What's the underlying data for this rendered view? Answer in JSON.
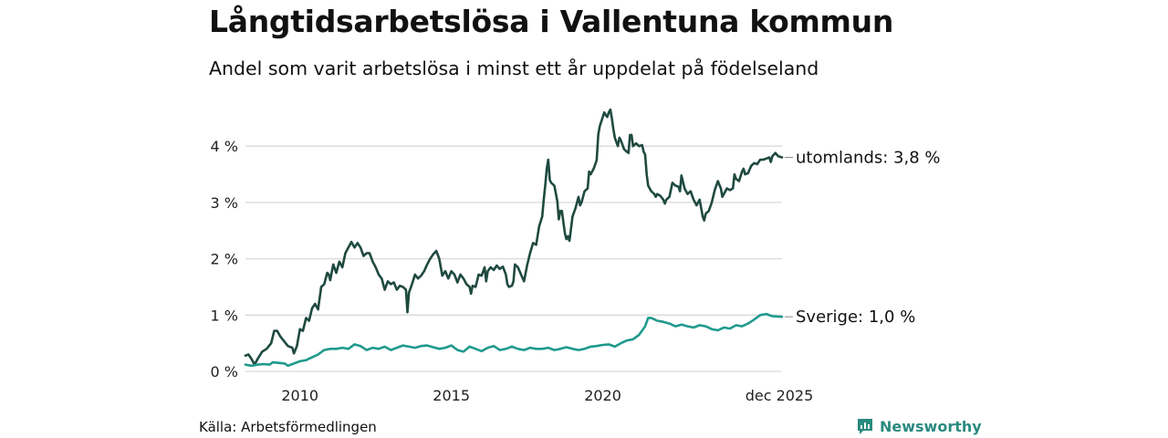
{
  "title": "Långtidsarbetslösa i Vallentuna kommun",
  "subtitle": "Andel som varit arbetslösa i minst ett år uppdelat på födelseland",
  "source": "Källa: Arbetsförmedlingen",
  "brand": "Newsworthy",
  "colors": {
    "utomlands": "#1f4a40",
    "sverige": "#1f9a8c",
    "grid": "#d9d9d9",
    "brand": "#2a8a80"
  },
  "chart_data": {
    "type": "line",
    "title": "Långtidsarbetslösa i Vallentuna kommun",
    "xlabel": "",
    "ylabel": "",
    "ylim": [
      0,
      4.8
    ],
    "xlim": [
      2008.2,
      2025.92
    ],
    "y_ticks": [
      0,
      1,
      2,
      3,
      4
    ],
    "y_tick_labels": [
      "0 %",
      "1 %",
      "2 %",
      "3 %",
      "4 %"
    ],
    "x_ticks": [
      2010,
      2015,
      2020,
      2025.92
    ],
    "x_tick_labels": [
      "2010",
      "2015",
      "2020",
      "dec 2025"
    ],
    "grid": true,
    "series": [
      {
        "name": "utomlands",
        "label": "utomlands: 3,8 %",
        "points": [
          [
            2008.2,
            0.28
          ],
          [
            2008.3,
            0.3
          ],
          [
            2008.4,
            0.22
          ],
          [
            2008.5,
            0.12
          ],
          [
            2008.6,
            0.22
          ],
          [
            2008.75,
            0.35
          ],
          [
            2008.9,
            0.4
          ],
          [
            2009.05,
            0.5
          ],
          [
            2009.15,
            0.72
          ],
          [
            2009.25,
            0.72
          ],
          [
            2009.35,
            0.62
          ],
          [
            2009.5,
            0.52
          ],
          [
            2009.6,
            0.45
          ],
          [
            2009.75,
            0.42
          ],
          [
            2009.8,
            0.32
          ],
          [
            2009.9,
            0.45
          ],
          [
            2010.0,
            0.75
          ],
          [
            2010.1,
            0.72
          ],
          [
            2010.2,
            0.95
          ],
          [
            2010.3,
            0.9
          ],
          [
            2010.4,
            1.12
          ],
          [
            2010.5,
            1.2
          ],
          [
            2010.6,
            1.1
          ],
          [
            2010.7,
            1.5
          ],
          [
            2010.8,
            1.55
          ],
          [
            2010.9,
            1.75
          ],
          [
            2010.95,
            1.72
          ],
          [
            2011.0,
            1.62
          ],
          [
            2011.1,
            1.9
          ],
          [
            2011.2,
            1.75
          ],
          [
            2011.3,
            1.95
          ],
          [
            2011.4,
            1.85
          ],
          [
            2011.5,
            2.1
          ],
          [
            2011.6,
            2.2
          ],
          [
            2011.7,
            2.3
          ],
          [
            2011.8,
            2.2
          ],
          [
            2011.9,
            2.28
          ],
          [
            2012.0,
            2.2
          ],
          [
            2012.1,
            2.05
          ],
          [
            2012.2,
            2.1
          ],
          [
            2012.3,
            2.1
          ],
          [
            2012.4,
            1.95
          ],
          [
            2012.5,
            1.85
          ],
          [
            2012.6,
            1.72
          ],
          [
            2012.7,
            1.65
          ],
          [
            2012.8,
            1.45
          ],
          [
            2012.9,
            1.6
          ],
          [
            2013.0,
            1.55
          ],
          [
            2013.1,
            1.58
          ],
          [
            2013.2,
            1.45
          ],
          [
            2013.3,
            1.52
          ],
          [
            2013.4,
            1.5
          ],
          [
            2013.5,
            1.45
          ],
          [
            2013.55,
            1.05
          ],
          [
            2013.6,
            1.4
          ],
          [
            2013.7,
            1.55
          ],
          [
            2013.8,
            1.72
          ],
          [
            2013.9,
            1.65
          ],
          [
            2014.0,
            1.7
          ],
          [
            2014.1,
            1.78
          ],
          [
            2014.2,
            1.9
          ],
          [
            2014.3,
            2.0
          ],
          [
            2014.4,
            2.08
          ],
          [
            2014.5,
            2.14
          ],
          [
            2014.6,
            2.0
          ],
          [
            2014.7,
            1.7
          ],
          [
            2014.8,
            1.78
          ],
          [
            2014.9,
            1.65
          ],
          [
            2015.0,
            1.78
          ],
          [
            2015.1,
            1.72
          ],
          [
            2015.2,
            1.58
          ],
          [
            2015.3,
            1.72
          ],
          [
            2015.4,
            1.65
          ],
          [
            2015.5,
            1.55
          ],
          [
            2015.6,
            1.5
          ],
          [
            2015.65,
            1.38
          ],
          [
            2015.7,
            1.52
          ],
          [
            2015.8,
            1.5
          ],
          [
            2015.9,
            1.72
          ],
          [
            2016.0,
            1.7
          ],
          [
            2016.1,
            1.85
          ],
          [
            2016.15,
            1.6
          ],
          [
            2016.2,
            1.78
          ],
          [
            2016.3,
            1.85
          ],
          [
            2016.4,
            1.8
          ],
          [
            2016.5,
            1.88
          ],
          [
            2016.6,
            1.82
          ],
          [
            2016.7,
            1.86
          ],
          [
            2016.8,
            1.72
          ],
          [
            2016.85,
            1.55
          ],
          [
            2016.9,
            1.5
          ],
          [
            2017.0,
            1.52
          ],
          [
            2017.05,
            1.6
          ],
          [
            2017.1,
            1.9
          ],
          [
            2017.2,
            1.85
          ],
          [
            2017.3,
            1.72
          ],
          [
            2017.4,
            1.6
          ],
          [
            2017.5,
            1.88
          ],
          [
            2017.6,
            2.1
          ],
          [
            2017.7,
            2.28
          ],
          [
            2017.8,
            2.25
          ],
          [
            2017.9,
            2.58
          ],
          [
            2018.0,
            2.75
          ],
          [
            2018.05,
            3.05
          ],
          [
            2018.1,
            3.3
          ],
          [
            2018.15,
            3.6
          ],
          [
            2018.2,
            3.76
          ],
          [
            2018.25,
            3.4
          ],
          [
            2018.3,
            3.35
          ],
          [
            2018.4,
            3.3
          ],
          [
            2018.5,
            3.02
          ],
          [
            2018.55,
            2.7
          ],
          [
            2018.6,
            2.85
          ],
          [
            2018.65,
            2.85
          ],
          [
            2018.7,
            2.65
          ],
          [
            2018.75,
            2.45
          ],
          [
            2018.8,
            2.35
          ],
          [
            2018.85,
            2.4
          ],
          [
            2018.9,
            2.32
          ],
          [
            2019.0,
            2.75
          ],
          [
            2019.1,
            2.9
          ],
          [
            2019.2,
            3.1
          ],
          [
            2019.25,
            2.95
          ],
          [
            2019.3,
            3.0
          ],
          [
            2019.4,
            3.2
          ],
          [
            2019.5,
            3.25
          ],
          [
            2019.55,
            3.55
          ],
          [
            2019.6,
            3.5
          ],
          [
            2019.7,
            3.6
          ],
          [
            2019.8,
            3.75
          ],
          [
            2019.85,
            4.2
          ],
          [
            2019.9,
            4.35
          ],
          [
            2020.0,
            4.52
          ],
          [
            2020.05,
            4.6
          ],
          [
            2020.1,
            4.55
          ],
          [
            2020.15,
            4.52
          ],
          [
            2020.2,
            4.6
          ],
          [
            2020.25,
            4.65
          ],
          [
            2020.3,
            4.5
          ],
          [
            2020.35,
            4.3
          ],
          [
            2020.4,
            4.15
          ],
          [
            2020.5,
            4.0
          ],
          [
            2020.55,
            4.15
          ],
          [
            2020.6,
            4.1
          ],
          [
            2020.7,
            3.95
          ],
          [
            2020.8,
            3.9
          ],
          [
            2020.85,
            3.88
          ],
          [
            2020.9,
            4.2
          ],
          [
            2020.95,
            4.2
          ],
          [
            2021.0,
            4.0
          ],
          [
            2021.1,
            4.05
          ],
          [
            2021.2,
            4.0
          ],
          [
            2021.3,
            4.02
          ],
          [
            2021.35,
            3.9
          ],
          [
            2021.4,
            3.85
          ],
          [
            2021.45,
            3.5
          ],
          [
            2021.5,
            3.3
          ],
          [
            2021.6,
            3.2
          ],
          [
            2021.7,
            3.15
          ],
          [
            2021.75,
            3.1
          ],
          [
            2021.8,
            3.15
          ],
          [
            2021.9,
            3.12
          ],
          [
            2022.0,
            3.05
          ],
          [
            2022.05,
            2.98
          ],
          [
            2022.1,
            3.05
          ],
          [
            2022.2,
            3.1
          ],
          [
            2022.3,
            3.35
          ],
          [
            2022.4,
            3.3
          ],
          [
            2022.5,
            3.28
          ],
          [
            2022.55,
            3.2
          ],
          [
            2022.6,
            3.48
          ],
          [
            2022.7,
            3.25
          ],
          [
            2022.8,
            3.15
          ],
          [
            2022.9,
            3.2
          ],
          [
            2023.0,
            3.05
          ],
          [
            2023.1,
            2.95
          ],
          [
            2023.2,
            3.05
          ],
          [
            2023.3,
            2.75
          ],
          [
            2023.35,
            2.68
          ],
          [
            2023.4,
            2.8
          ],
          [
            2023.5,
            2.85
          ],
          [
            2023.6,
            3.0
          ],
          [
            2023.7,
            3.22
          ],
          [
            2023.8,
            3.38
          ],
          [
            2023.9,
            3.25
          ],
          [
            2023.95,
            3.1
          ],
          [
            2024.0,
            3.15
          ],
          [
            2024.1,
            3.25
          ],
          [
            2024.2,
            3.22
          ],
          [
            2024.3,
            3.25
          ],
          [
            2024.35,
            3.5
          ],
          [
            2024.4,
            3.42
          ],
          [
            2024.5,
            3.38
          ],
          [
            2024.6,
            3.55
          ],
          [
            2024.65,
            3.6
          ],
          [
            2024.7,
            3.5
          ],
          [
            2024.8,
            3.52
          ],
          [
            2024.9,
            3.65
          ],
          [
            2025.0,
            3.7
          ],
          [
            2025.1,
            3.68
          ],
          [
            2025.2,
            3.76
          ],
          [
            2025.3,
            3.76
          ],
          [
            2025.4,
            3.78
          ],
          [
            2025.5,
            3.8
          ],
          [
            2025.55,
            3.72
          ],
          [
            2025.6,
            3.82
          ],
          [
            2025.7,
            3.88
          ],
          [
            2025.8,
            3.82
          ],
          [
            2025.92,
            3.8
          ]
        ]
      },
      {
        "name": "Sverige",
        "label": "Sverige: 1,0 %",
        "points": [
          [
            2008.2,
            0.12
          ],
          [
            2008.4,
            0.1
          ],
          [
            2008.6,
            0.12
          ],
          [
            2008.8,
            0.13
          ],
          [
            2009.0,
            0.12
          ],
          [
            2009.1,
            0.16
          ],
          [
            2009.3,
            0.15
          ],
          [
            2009.5,
            0.14
          ],
          [
            2009.6,
            0.1
          ],
          [
            2009.8,
            0.14
          ],
          [
            2010.0,
            0.18
          ],
          [
            2010.2,
            0.2
          ],
          [
            2010.4,
            0.25
          ],
          [
            2010.6,
            0.3
          ],
          [
            2010.8,
            0.38
          ],
          [
            2011.0,
            0.4
          ],
          [
            2011.2,
            0.4
          ],
          [
            2011.4,
            0.42
          ],
          [
            2011.6,
            0.4
          ],
          [
            2011.8,
            0.48
          ],
          [
            2012.0,
            0.45
          ],
          [
            2012.2,
            0.38
          ],
          [
            2012.4,
            0.42
          ],
          [
            2012.6,
            0.4
          ],
          [
            2012.8,
            0.44
          ],
          [
            2013.0,
            0.38
          ],
          [
            2013.2,
            0.42
          ],
          [
            2013.4,
            0.46
          ],
          [
            2013.6,
            0.44
          ],
          [
            2013.8,
            0.42
          ],
          [
            2014.0,
            0.45
          ],
          [
            2014.2,
            0.46
          ],
          [
            2014.4,
            0.43
          ],
          [
            2014.6,
            0.4
          ],
          [
            2014.8,
            0.42
          ],
          [
            2015.0,
            0.46
          ],
          [
            2015.2,
            0.38
          ],
          [
            2015.4,
            0.35
          ],
          [
            2015.6,
            0.44
          ],
          [
            2015.8,
            0.4
          ],
          [
            2016.0,
            0.36
          ],
          [
            2016.2,
            0.42
          ],
          [
            2016.4,
            0.45
          ],
          [
            2016.6,
            0.38
          ],
          [
            2016.8,
            0.4
          ],
          [
            2017.0,
            0.44
          ],
          [
            2017.2,
            0.4
          ],
          [
            2017.4,
            0.38
          ],
          [
            2017.6,
            0.42
          ],
          [
            2017.8,
            0.4
          ],
          [
            2018.0,
            0.4
          ],
          [
            2018.2,
            0.42
          ],
          [
            2018.4,
            0.38
          ],
          [
            2018.6,
            0.4
          ],
          [
            2018.8,
            0.43
          ],
          [
            2019.0,
            0.4
          ],
          [
            2019.2,
            0.38
          ],
          [
            2019.4,
            0.4
          ],
          [
            2019.6,
            0.44
          ],
          [
            2019.8,
            0.45
          ],
          [
            2020.0,
            0.47
          ],
          [
            2020.2,
            0.48
          ],
          [
            2020.4,
            0.44
          ],
          [
            2020.6,
            0.5
          ],
          [
            2020.8,
            0.55
          ],
          [
            2021.0,
            0.57
          ],
          [
            2021.2,
            0.65
          ],
          [
            2021.4,
            0.8
          ],
          [
            2021.5,
            0.95
          ],
          [
            2021.6,
            0.95
          ],
          [
            2021.8,
            0.9
          ],
          [
            2022.0,
            0.88
          ],
          [
            2022.2,
            0.85
          ],
          [
            2022.4,
            0.8
          ],
          [
            2022.6,
            0.83
          ],
          [
            2022.8,
            0.8
          ],
          [
            2023.0,
            0.78
          ],
          [
            2023.2,
            0.82
          ],
          [
            2023.4,
            0.8
          ],
          [
            2023.6,
            0.75
          ],
          [
            2023.8,
            0.73
          ],
          [
            2024.0,
            0.78
          ],
          [
            2024.2,
            0.76
          ],
          [
            2024.4,
            0.82
          ],
          [
            2024.6,
            0.8
          ],
          [
            2024.8,
            0.85
          ],
          [
            2025.0,
            0.92
          ],
          [
            2025.2,
            1.0
          ],
          [
            2025.4,
            1.02
          ],
          [
            2025.6,
            0.98
          ],
          [
            2025.92,
            0.97
          ]
        ]
      }
    ]
  }
}
